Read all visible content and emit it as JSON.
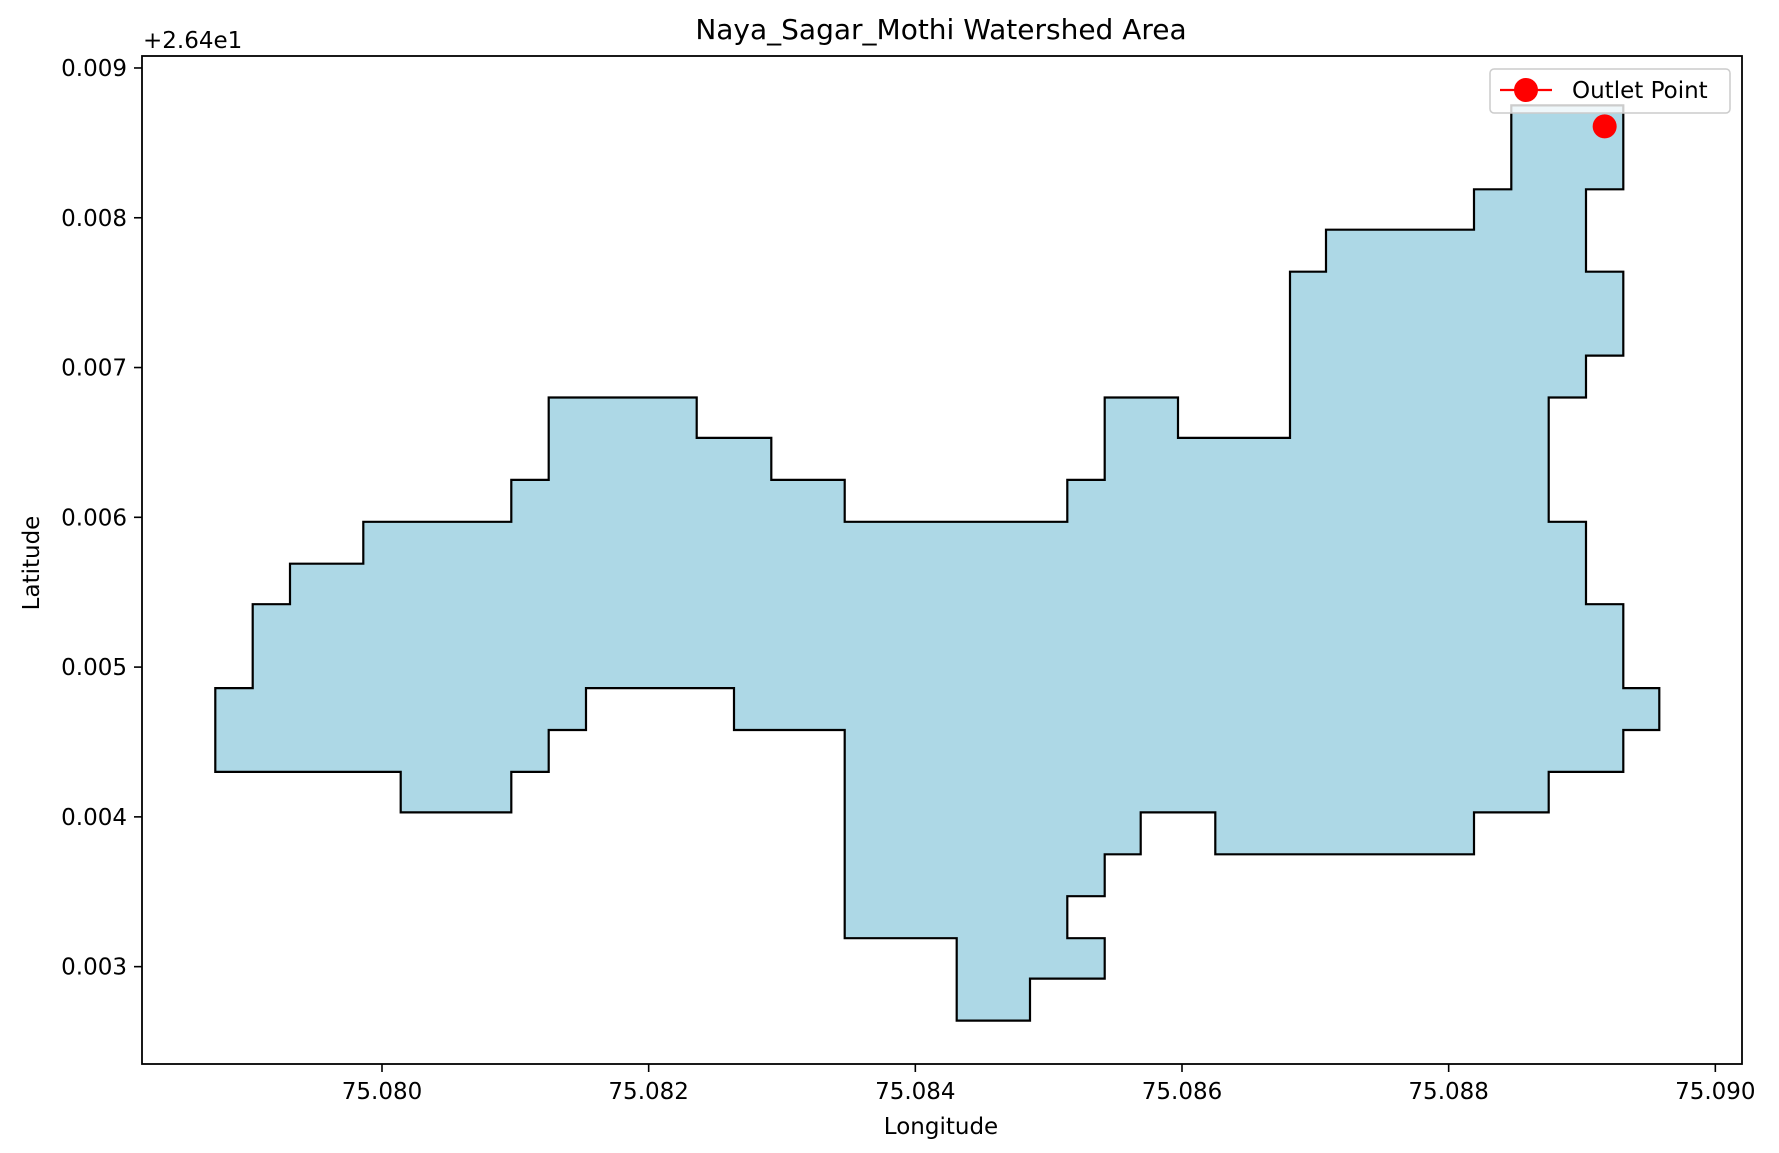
{
  "chart_data": {
    "type": "polygon-map",
    "title": "Naya_Sagar_Mothi Watershed Area",
    "xlabel": "Longitude",
    "ylabel": "Latitude",
    "y_offset_label": "+2.64e1",
    "y_offset": 26.4,
    "xlim": [
      75.0782,
      75.0902
    ],
    "ylim": [
      26.40235,
      26.40908
    ],
    "x_ticks": [
      75.08,
      75.082,
      75.084,
      75.086,
      75.088,
      75.09
    ],
    "x_tick_labels": [
      "75.080",
      "75.082",
      "75.084",
      "75.086",
      "75.088",
      "75.090"
    ],
    "y_ticks": [
      0.003,
      0.004,
      0.005,
      0.006,
      0.007,
      0.008,
      0.009
    ],
    "y_tick_labels": [
      "0.003",
      "0.004",
      "0.005",
      "0.006",
      "0.007",
      "0.008",
      "0.009"
    ],
    "grid": false,
    "legend": {
      "position": "top-right",
      "entries": [
        {
          "label": "Outlet Point",
          "color": "#ff0000",
          "marker": "circle"
        }
      ]
    },
    "watershed": {
      "fill": "#add8e6",
      "edge": "#000000",
      "polygon": [
        [
          75.07875,
          26.4043
        ],
        [
          75.07875,
          26.40486
        ],
        [
          75.07903,
          26.40486
        ],
        [
          75.07903,
          26.40542
        ],
        [
          75.07931,
          26.40542
        ],
        [
          75.07931,
          26.40569
        ],
        [
          75.07986,
          26.40569
        ],
        [
          75.07986,
          26.40597
        ],
        [
          75.08097,
          26.40597
        ],
        [
          75.08097,
          26.40625
        ],
        [
          75.08125,
          26.40625
        ],
        [
          75.08125,
          26.4068
        ],
        [
          75.08236,
          26.4068
        ],
        [
          75.08236,
          26.40653
        ],
        [
          75.08292,
          26.40653
        ],
        [
          75.08292,
          26.40625
        ],
        [
          75.08347,
          26.40625
        ],
        [
          75.08347,
          26.40597
        ],
        [
          75.08514,
          26.40597
        ],
        [
          75.08514,
          26.40625
        ],
        [
          75.08542,
          26.40625
        ],
        [
          75.08542,
          26.4068
        ],
        [
          75.08597,
          26.4068
        ],
        [
          75.08597,
          26.40653
        ],
        [
          75.08681,
          26.40653
        ],
        [
          75.08681,
          26.40764
        ],
        [
          75.08708,
          26.40764
        ],
        [
          75.08708,
          26.40792
        ],
        [
          75.08819,
          26.40792
        ],
        [
          75.08819,
          26.40819
        ],
        [
          75.08847,
          26.40819
        ],
        [
          75.08847,
          26.40875
        ],
        [
          75.08931,
          26.40875
        ],
        [
          75.08931,
          26.40819
        ],
        [
          75.08903,
          26.40819
        ],
        [
          75.08903,
          26.40764
        ],
        [
          75.08931,
          26.40764
        ],
        [
          75.08931,
          26.40708
        ],
        [
          75.08903,
          26.40708
        ],
        [
          75.08903,
          26.4068
        ],
        [
          75.08875,
          26.4068
        ],
        [
          75.08875,
          26.40597
        ],
        [
          75.08903,
          26.40597
        ],
        [
          75.08903,
          26.40542
        ],
        [
          75.08931,
          26.40542
        ],
        [
          75.08931,
          26.40486
        ],
        [
          75.08958,
          26.40486
        ],
        [
          75.08958,
          26.40458
        ],
        [
          75.08931,
          26.40458
        ],
        [
          75.08931,
          26.4043
        ],
        [
          75.08875,
          26.4043
        ],
        [
          75.08875,
          26.40403
        ],
        [
          75.08819,
          26.40403
        ],
        [
          75.08819,
          26.40375
        ],
        [
          75.08625,
          26.40375
        ],
        [
          75.08625,
          26.40403
        ],
        [
          75.08569,
          26.40403
        ],
        [
          75.08569,
          26.40375
        ],
        [
          75.08542,
          26.40375
        ],
        [
          75.08542,
          26.40347
        ],
        [
          75.08514,
          26.40347
        ],
        [
          75.08514,
          26.40319
        ],
        [
          75.08542,
          26.40319
        ],
        [
          75.08542,
          26.40292
        ],
        [
          75.08486,
          26.40292
        ],
        [
          75.08486,
          26.40264
        ],
        [
          75.08431,
          26.40264
        ],
        [
          75.08431,
          26.40319
        ],
        [
          75.08347,
          26.40319
        ],
        [
          75.08347,
          26.40458
        ],
        [
          75.08264,
          26.40458
        ],
        [
          75.08264,
          26.40486
        ],
        [
          75.08153,
          26.40486
        ],
        [
          75.08153,
          26.40458
        ],
        [
          75.08125,
          26.40458
        ],
        [
          75.08125,
          26.4043
        ],
        [
          75.08097,
          26.4043
        ],
        [
          75.08097,
          26.40403
        ],
        [
          75.08014,
          26.40403
        ],
        [
          75.08014,
          26.4043
        ]
      ]
    },
    "outlet_point": {
      "name": "Outlet Point",
      "x": 75.08917,
      "y": 26.40861,
      "color": "#ff0000"
    }
  }
}
